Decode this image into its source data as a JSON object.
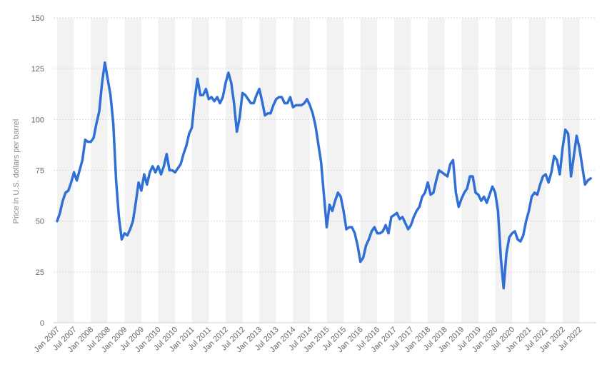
{
  "chart_data": {
    "type": "line",
    "title": "",
    "xlabel": "",
    "ylabel": "Price in U.S. dollars per barrel",
    "ylim": [
      0,
      150
    ],
    "yticks": [
      0,
      25,
      50,
      75,
      100,
      125,
      150
    ],
    "grid": true,
    "legend": "none",
    "colors": {
      "line": "#2f6fd6",
      "grid": "#d9d9d9",
      "band": "#f2f2f2"
    },
    "x_tick_labels": [
      "Jan 2007",
      "Jul 2007",
      "Jan 2008",
      "Jul 2008",
      "Jan 2009",
      "Jul 2009",
      "Jan 2010",
      "Jul 2010",
      "Jan 2011",
      "Jul 2011",
      "Jan 2012",
      "Jul 2012",
      "Jan 2013",
      "Jul 2013",
      "Jan 2014",
      "Jul 2014",
      "Jan 2015",
      "Jul 2015",
      "Jan 2016",
      "Jul 2016",
      "Jan 2017",
      "Jul 2017",
      "Jan 2018",
      "Jul 2018",
      "Jan 2019",
      "Jul 2019",
      "Jan 2020",
      "Jul 2020",
      "Jan 2021",
      "Jul 2021",
      "Jan 2022",
      "Jul 2022"
    ],
    "series": [
      {
        "x_start": "Jan 2007",
        "x_end": "Oct 2022",
        "frequency": "monthly",
        "values": [
          50,
          54,
          60,
          64,
          65,
          69,
          74,
          70,
          75,
          80,
          90,
          89,
          89,
          91,
          98,
          104,
          118,
          128,
          120,
          112,
          98,
          70,
          52,
          41,
          44,
          43,
          46,
          50,
          59,
          69,
          65,
          73,
          68,
          74,
          77,
          74,
          77,
          73,
          77,
          83,
          75,
          75,
          74,
          76,
          78,
          83,
          87,
          93,
          96,
          110,
          120,
          112,
          112,
          115,
          110,
          111,
          109,
          111,
          108,
          111,
          118,
          123,
          118,
          108,
          94,
          101,
          113,
          112,
          110,
          108,
          108,
          112,
          115,
          109,
          102,
          103,
          103,
          107,
          110,
          111,
          111,
          108,
          108,
          111,
          106,
          107,
          107,
          107,
          108,
          110,
          107,
          103,
          97,
          88,
          79,
          63,
          47,
          58,
          55,
          60,
          64,
          62,
          55,
          46,
          47,
          47,
          44,
          38,
          30,
          32,
          38,
          41,
          45,
          47,
          44,
          44,
          45,
          48,
          44,
          52,
          53,
          54,
          51,
          52,
          49,
          46,
          48,
          52,
          55,
          57,
          62,
          64,
          69,
          63,
          64,
          70,
          75,
          74,
          73,
          72,
          78,
          80,
          64,
          57,
          61,
          64,
          66,
          72,
          72,
          64,
          63,
          60,
          62,
          59,
          63,
          67,
          64,
          55,
          32,
          17,
          34,
          42,
          44,
          45,
          41,
          40,
          43,
          50,
          55,
          62,
          64,
          63,
          68,
          72,
          73,
          69,
          74,
          82,
          80,
          73,
          86,
          95,
          93,
          72,
          82,
          92,
          86,
          77,
          68,
          70,
          71
        ]
      }
    ]
  }
}
